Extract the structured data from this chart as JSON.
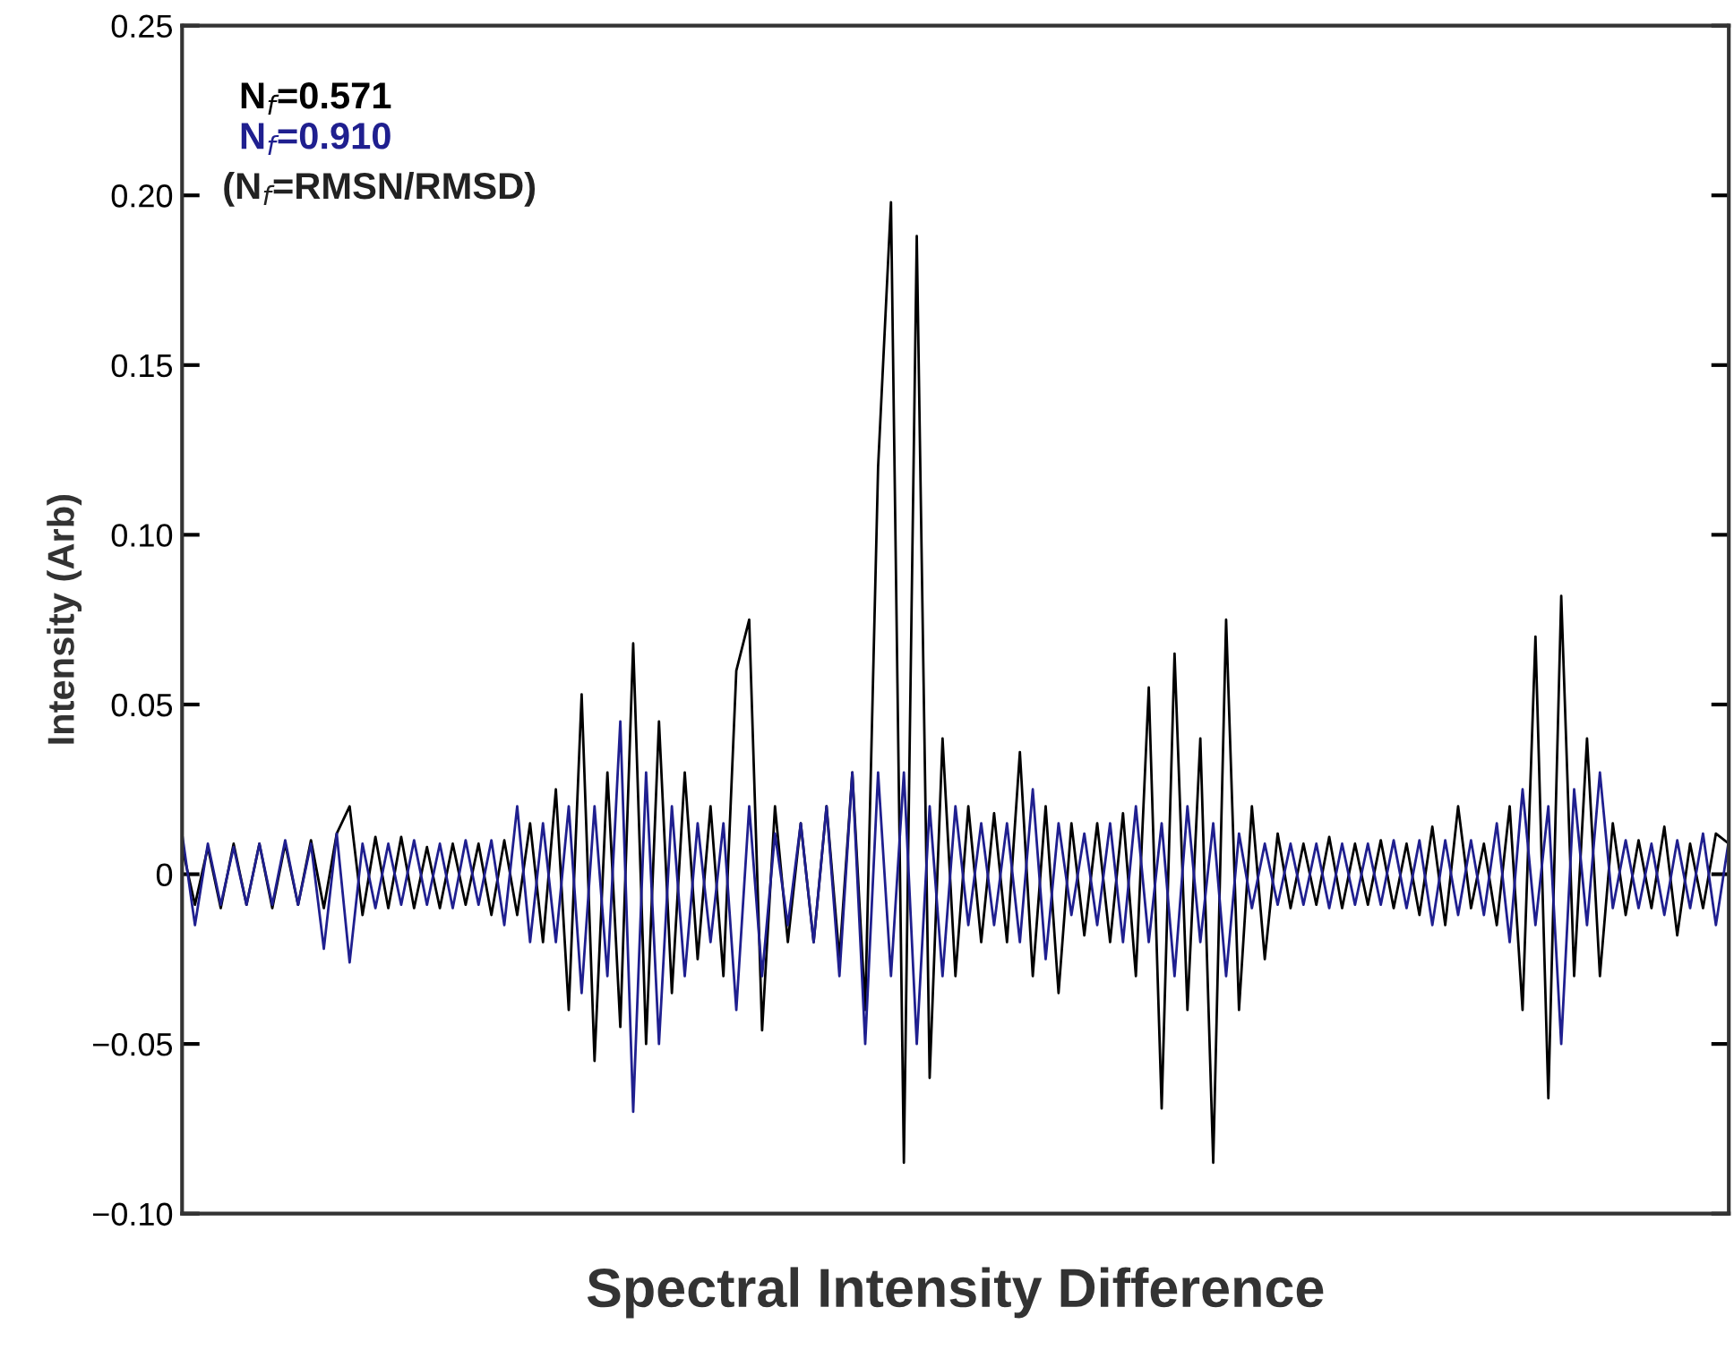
{
  "chart_data": {
    "type": "line",
    "xlabel": "Spectral Intensity Difference",
    "ylabel": "Intensity (Arb)",
    "categories": [
      null,
      null,
      null,
      null,
      null,
      null,
      null,
      null,
      null,
      null,
      null,
      null,
      null,
      null,
      null,
      null,
      null,
      null,
      null,
      null,
      null,
      null,
      null,
      null,
      null,
      null,
      null,
      null,
      null,
      null,
      null,
      null,
      null,
      null,
      null,
      null,
      null,
      null,
      null,
      null,
      null,
      null,
      null,
      null,
      null,
      null,
      null,
      null,
      null,
      null,
      null,
      null,
      null,
      null,
      null,
      null,
      null,
      null,
      null,
      null,
      null,
      null,
      null,
      null,
      null,
      null,
      null,
      null,
      null,
      null,
      null,
      null,
      null,
      null,
      null,
      null,
      null,
      null,
      null,
      null,
      null,
      null,
      null,
      null,
      null,
      null,
      null,
      null,
      null,
      null,
      null,
      null,
      null,
      null,
      null,
      null,
      null,
      null,
      null,
      null,
      null,
      null,
      null,
      null,
      null,
      null,
      null,
      null,
      null,
      null,
      null,
      null,
      null,
      null,
      null,
      null,
      null,
      null,
      null,
      null,
      null
    ],
    "ylim": [
      -0.1,
      0.25
    ],
    "yticks": [
      {
        "value": -0.1,
        "label": "−0.10"
      },
      {
        "value": -0.05,
        "label": "−0.05"
      },
      {
        "value": 0,
        "label": "0"
      },
      {
        "value": 0.05,
        "label": "0.05"
      },
      {
        "value": 0.1,
        "label": "0.10"
      },
      {
        "value": 0.15,
        "label": "0.15"
      },
      {
        "value": 0.2,
        "label": "0.20"
      },
      {
        "value": 0.25,
        "label": "0.25"
      }
    ],
    "legend": "top left",
    "marker": "none",
    "line_style": "solid",
    "annotations": [
      "(N$_{f}$=RMSN/RMSD)"
    ],
    "series": [
      {
        "name": "N$_{f}$=0.571",
        "color": "#000000",
        "values": [
          0.008,
          -0.009,
          0.008,
          -0.01,
          0.009,
          -0.009,
          0.009,
          -0.01,
          0.009,
          -0.009,
          0.01,
          -0.01,
          0.012,
          0.02,
          -0.012,
          0.011,
          -0.01,
          0.011,
          -0.01,
          0.008,
          -0.01,
          0.009,
          -0.009,
          0.009,
          -0.012,
          0.01,
          -0.012,
          0.015,
          -0.02,
          0.025,
          -0.04,
          0.053,
          -0.055,
          0.03,
          -0.045,
          0.068,
          -0.05,
          0.045,
          -0.035,
          0.03,
          -0.025,
          0.02,
          -0.03,
          0.06,
          0.075,
          -0.046,
          0.02,
          -0.02,
          0.015,
          -0.02,
          0.02,
          -0.025,
          0.03,
          -0.04,
          0.12,
          0.198,
          -0.085,
          0.188,
          -0.06,
          0.04,
          -0.03,
          0.02,
          -0.02,
          0.018,
          -0.02,
          0.036,
          -0.03,
          0.02,
          -0.035,
          0.015,
          -0.018,
          0.015,
          -0.02,
          0.018,
          -0.03,
          0.055,
          -0.069,
          0.065,
          -0.04,
          0.04,
          -0.085,
          0.075,
          -0.04,
          0.02,
          -0.025,
          0.012,
          -0.01,
          0.009,
          -0.009,
          0.011,
          -0.01,
          0.009,
          -0.009,
          0.01,
          -0.01,
          0.009,
          -0.012,
          0.014,
          -0.015,
          0.02,
          -0.01,
          0.009,
          -0.015,
          0.02,
          -0.04,
          0.07,
          -0.066,
          0.082,
          -0.03,
          0.04,
          -0.03,
          0.015,
          -0.012,
          0.01,
          -0.01,
          0.014,
          -0.018,
          0.009,
          -0.01,
          0.012,
          0.009
        ]
      },
      {
        "name": "N$_{f}$=0.910",
        "color": "#1f1f8f",
        "values": [
          0.012,
          -0.015,
          0.009,
          -0.009,
          0.008,
          -0.009,
          0.009,
          -0.009,
          0.01,
          -0.009,
          0.009,
          -0.022,
          0.012,
          -0.026,
          0.009,
          -0.01,
          0.009,
          -0.009,
          0.01,
          -0.009,
          0.009,
          -0.01,
          0.01,
          -0.009,
          0.01,
          -0.015,
          0.02,
          -0.02,
          0.015,
          -0.02,
          0.02,
          -0.035,
          0.02,
          -0.03,
          0.045,
          -0.07,
          0.03,
          -0.05,
          0.02,
          -0.03,
          0.015,
          -0.02,
          0.015,
          -0.04,
          0.02,
          -0.03,
          0.012,
          -0.015,
          0.015,
          -0.02,
          0.02,
          -0.03,
          0.03,
          -0.05,
          0.03,
          -0.03,
          0.03,
          -0.05,
          0.02,
          -0.03,
          0.02,
          -0.015,
          0.015,
          -0.015,
          0.015,
          -0.02,
          0.025,
          -0.025,
          0.015,
          -0.012,
          0.012,
          -0.015,
          0.015,
          -0.02,
          0.02,
          -0.02,
          0.015,
          -0.03,
          0.02,
          -0.02,
          0.015,
          -0.03,
          0.012,
          -0.01,
          0.009,
          -0.009,
          0.009,
          -0.009,
          0.009,
          -0.01,
          0.009,
          -0.009,
          0.009,
          -0.009,
          0.01,
          -0.01,
          0.01,
          -0.015,
          0.01,
          -0.012,
          0.01,
          -0.012,
          0.015,
          -0.02,
          0.025,
          -0.015,
          0.02,
          -0.05,
          0.025,
          -0.015,
          0.03,
          -0.01,
          0.01,
          -0.01,
          0.009,
          -0.012,
          0.01,
          -0.01,
          0.012,
          -0.015,
          0.01
        ]
      }
    ]
  }
}
